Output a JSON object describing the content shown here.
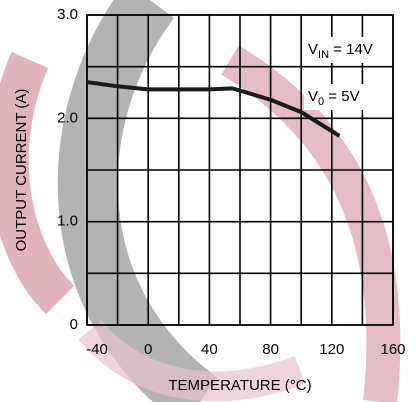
{
  "chart_data": {
    "type": "line",
    "y_label": "OUTPUT CURRENT (A)",
    "x_label": "TEMPERATURE (°C)",
    "x": [
      -40,
      -20,
      0,
      20,
      40,
      55,
      80,
      100,
      125
    ],
    "series": [
      {
        "color": "#1a1a1a",
        "values": [
          2.35,
          2.31,
          2.28,
          2.28,
          2.28,
          2.29,
          2.18,
          2.06,
          1.83
        ]
      }
    ],
    "xlim": [
      -40,
      160
    ],
    "xticks": [
      -40,
      0,
      40,
      80,
      120,
      160
    ],
    "x_minor_grid": [
      -20,
      20,
      60,
      100,
      140
    ],
    "ylim": [
      0,
      3
    ],
    "yticks": [
      0,
      {
        "value": 1,
        "label": "1.0"
      },
      {
        "value": 2,
        "label": "2.0"
      },
      {
        "value": 3,
        "label": "3.0"
      }
    ],
    "y_minor_grid": [
      0.5,
      1.5,
      2.5
    ],
    "grid": true,
    "annotations": [
      {
        "main": "V",
        "sub": "IN",
        "rest": " = 14V"
      },
      {
        "main": "V",
        "sub": "0",
        "rest": " = 5V"
      }
    ]
  }
}
